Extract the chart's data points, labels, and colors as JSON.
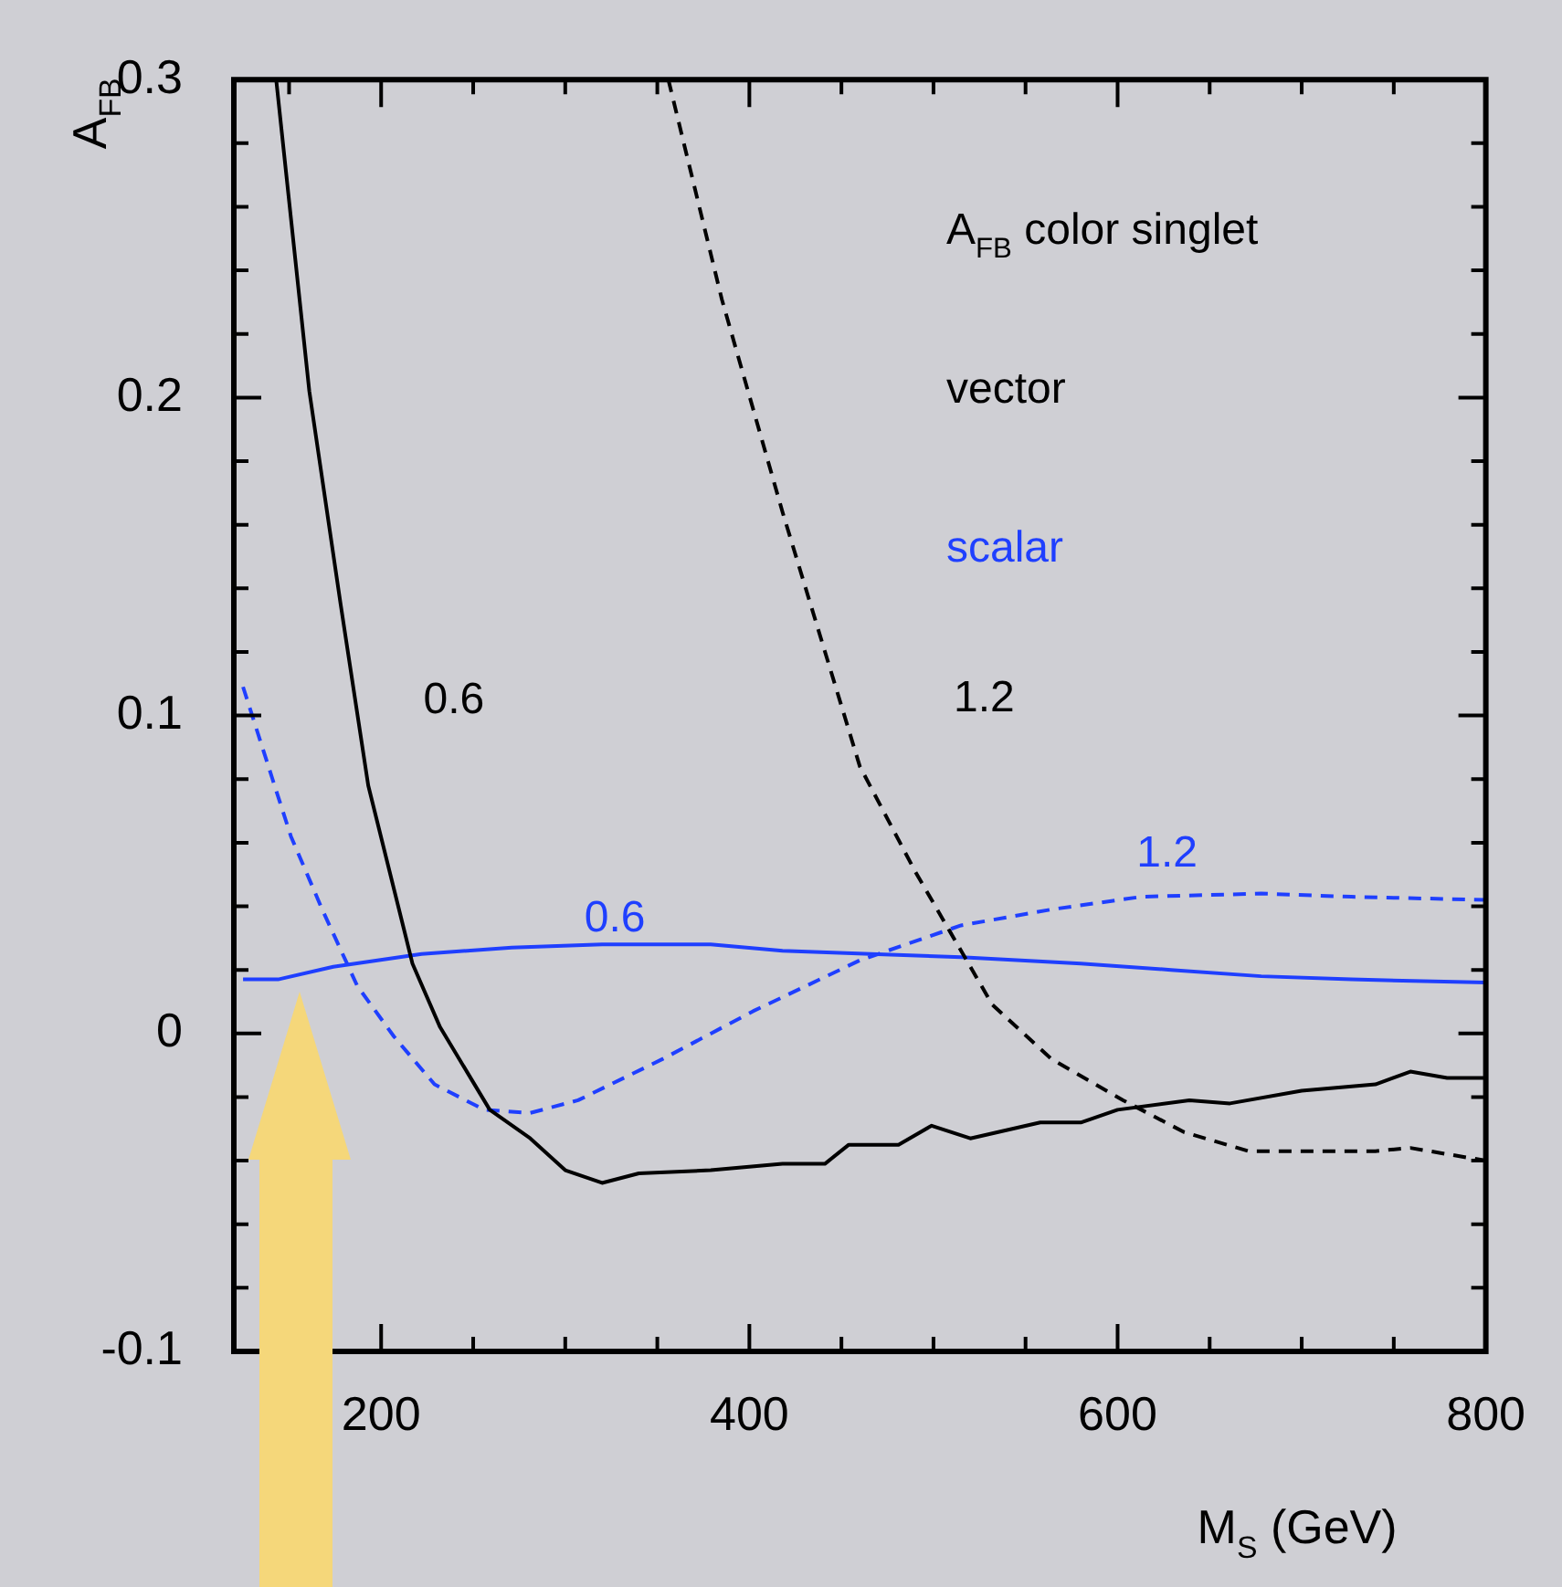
{
  "chart_data": {
    "type": "line",
    "xlabel": "M$_{S}$ (GeV)",
    "ylabel": "A$_{FB}$",
    "xlim": [
      120,
      800
    ],
    "xticks": [
      {
        "value": 150,
        "label": null
      },
      200,
      {
        "value": 250,
        "label": null
      },
      {
        "value": 300,
        "label": null
      },
      {
        "value": 350,
        "label": null
      },
      400,
      {
        "value": 450,
        "label": null
      },
      {
        "value": 500,
        "label": null
      },
      {
        "value": 550,
        "label": null
      },
      600,
      {
        "value": 650,
        "label": null
      },
      {
        "value": 700,
        "label": null
      },
      {
        "value": 750,
        "label": null
      },
      800
    ],
    "ylim": [
      -0.1,
      0.3
    ],
    "yticks": [
      -0.1,
      {
        "value": -0.08,
        "label": null
      },
      {
        "value": -0.06,
        "label": null
      },
      {
        "value": -0.04,
        "label": null
      },
      {
        "value": -0.02,
        "label": null
      },
      0,
      {
        "value": 0.02,
        "label": null
      },
      {
        "value": 0.04,
        "label": null
      },
      {
        "value": 0.06,
        "label": null
      },
      {
        "value": 0.08,
        "label": null
      },
      0.1,
      {
        "value": 0.12,
        "label": null
      },
      {
        "value": 0.14,
        "label": null
      },
      {
        "value": 0.16,
        "label": null
      },
      {
        "value": 0.18,
        "label": null
      },
      0.2,
      {
        "value": 0.22,
        "label": null
      },
      {
        "value": 0.24,
        "label": null
      },
      {
        "value": 0.26,
        "label": null
      },
      {
        "value": 0.28,
        "label": null
      },
      0.3
    ],
    "marker": "none",
    "annotations": [
      "A$_{FB}$ color singlet",
      "vector",
      "scalar"
    ],
    "series": [
      {
        "name": "0.6",
        "color": "#000000",
        "line_style": "solid",
        "x": [
          143,
          161,
          178,
          193,
          217,
          232,
          259,
          281,
          300,
          320,
          340,
          379,
          418,
          441,
          454,
          460,
          481,
          499,
          520,
          558,
          580,
          600,
          639,
          661,
          700,
          740,
          759,
          779,
          800
        ],
        "values": [
          0.3,
          0.202,
          0.135,
          0.078,
          0.022,
          0.002,
          -0.024,
          -0.033,
          -0.043,
          -0.047,
          -0.044,
          -0.043,
          -0.041,
          -0.041,
          -0.035,
          -0.035,
          -0.035,
          -0.029,
          -0.033,
          -0.028,
          -0.028,
          -0.024,
          -0.021,
          -0.022,
          -0.018,
          -0.016,
          -0.012,
          -0.014,
          -0.014
        ]
      },
      {
        "name": "1.2",
        "color": "#000000",
        "line_style": "dashed",
        "x": [
          356,
          385,
          418,
          460,
          490,
          509,
          532,
          564,
          603,
          636,
          671,
          740,
          759,
          800
        ],
        "values": [
          0.3,
          0.231,
          0.164,
          0.084,
          0.051,
          0.032,
          0.009,
          -0.008,
          -0.021,
          -0.031,
          -0.037,
          -0.037,
          -0.036,
          -0.04
        ]
      },
      {
        "name": "0.6",
        "color": "#1f3fff",
        "line_style": "solid",
        "x": [
          125,
          144,
          174,
          222,
          271,
          320,
          379,
          418,
          466,
          515,
          580,
          629,
          678,
          727,
          800
        ],
        "values": [
          0.017,
          0.017,
          0.021,
          0.025,
          0.027,
          0.028,
          0.028,
          0.026,
          0.025,
          0.024,
          0.022,
          0.02,
          0.018,
          0.017,
          0.016
        ]
      },
      {
        "name": "1.2",
        "color": "#1f3fff",
        "line_style": "dashed",
        "x": [
          125,
          141,
          151,
          168,
          187,
          207,
          229,
          256,
          281,
          307,
          353,
          402,
          460,
          515,
          564,
          613,
          678,
          727,
          800
        ],
        "values": [
          0.109,
          0.08,
          0.062,
          0.039,
          0.015,
          -0.001,
          -0.016,
          -0.024,
          -0.025,
          -0.021,
          -0.008,
          0.007,
          0.023,
          0.034,
          0.039,
          0.043,
          0.044,
          0.043,
          0.042
        ]
      }
    ]
  }
}
